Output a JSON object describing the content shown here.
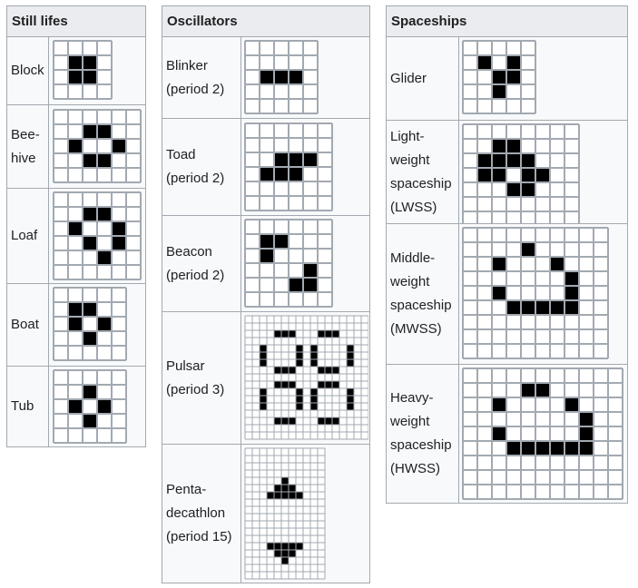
{
  "colors": {
    "cell_alive": "#000000",
    "cell_dead": "#ffffff",
    "grid_line": "#a2a9b1",
    "header_bg": "#eaecf0",
    "row_bg": "#f8f9fa"
  },
  "tables": [
    {
      "header": "Still lifes",
      "rows": [
        {
          "name": [
            "Block"
          ],
          "grid": {
            "rows": 4,
            "cols": 4,
            "alive": [
              [
                1,
                1
              ],
              [
                1,
                2
              ],
              [
                2,
                1
              ],
              [
                2,
                2
              ]
            ]
          }
        },
        {
          "name": [
            "Bee-",
            "hive"
          ],
          "grid": {
            "rows": 5,
            "cols": 6,
            "alive": [
              [
                1,
                2
              ],
              [
                1,
                3
              ],
              [
                2,
                1
              ],
              [
                2,
                4
              ],
              [
                3,
                2
              ],
              [
                3,
                3
              ]
            ]
          }
        },
        {
          "name": [
            "Loaf"
          ],
          "grid": {
            "rows": 6,
            "cols": 6,
            "alive": [
              [
                1,
                2
              ],
              [
                1,
                3
              ],
              [
                2,
                1
              ],
              [
                2,
                4
              ],
              [
                3,
                2
              ],
              [
                3,
                4
              ],
              [
                4,
                3
              ]
            ]
          }
        },
        {
          "name": [
            "Boat"
          ],
          "grid": {
            "rows": 5,
            "cols": 5,
            "alive": [
              [
                1,
                1
              ],
              [
                1,
                2
              ],
              [
                2,
                1
              ],
              [
                2,
                3
              ],
              [
                3,
                2
              ]
            ]
          }
        },
        {
          "name": [
            "Tub"
          ],
          "grid": {
            "rows": 5,
            "cols": 5,
            "alive": [
              [
                1,
                2
              ],
              [
                2,
                1
              ],
              [
                2,
                3
              ],
              [
                3,
                2
              ]
            ]
          }
        }
      ]
    },
    {
      "header": "Oscillators",
      "rows": [
        {
          "name": [
            "Blinker",
            "(period 2)"
          ],
          "grid": {
            "rows": 5,
            "cols": 5,
            "alive": [
              [
                2,
                1
              ],
              [
                2,
                2
              ],
              [
                2,
                3
              ]
            ]
          }
        },
        {
          "name": [
            "Toad",
            "(period 2)"
          ],
          "grid": {
            "rows": 6,
            "cols": 6,
            "alive": [
              [
                2,
                2
              ],
              [
                2,
                3
              ],
              [
                2,
                4
              ],
              [
                3,
                1
              ],
              [
                3,
                2
              ],
              [
                3,
                3
              ]
            ]
          }
        },
        {
          "name": [
            "Beacon",
            "(period 2)"
          ],
          "grid": {
            "rows": 6,
            "cols": 6,
            "alive": [
              [
                1,
                1
              ],
              [
                1,
                2
              ],
              [
                2,
                1
              ],
              [
                3,
                4
              ],
              [
                4,
                3
              ],
              [
                4,
                4
              ]
            ]
          }
        },
        {
          "name": [
            "Pulsar",
            "(period 3)"
          ],
          "grid": {
            "rows": 17,
            "cols": 17,
            "alive": [
              [
                2,
                4
              ],
              [
                2,
                5
              ],
              [
                2,
                6
              ],
              [
                2,
                10
              ],
              [
                2,
                11
              ],
              [
                2,
                12
              ],
              [
                4,
                2
              ],
              [
                4,
                7
              ],
              [
                4,
                9
              ],
              [
                4,
                14
              ],
              [
                5,
                2
              ],
              [
                5,
                7
              ],
              [
                5,
                9
              ],
              [
                5,
                14
              ],
              [
                6,
                2
              ],
              [
                6,
                7
              ],
              [
                6,
                9
              ],
              [
                6,
                14
              ],
              [
                7,
                4
              ],
              [
                7,
                5
              ],
              [
                7,
                6
              ],
              [
                7,
                10
              ],
              [
                7,
                11
              ],
              [
                7,
                12
              ],
              [
                9,
                4
              ],
              [
                9,
                5
              ],
              [
                9,
                6
              ],
              [
                9,
                10
              ],
              [
                9,
                11
              ],
              [
                9,
                12
              ],
              [
                10,
                2
              ],
              [
                10,
                7
              ],
              [
                10,
                9
              ],
              [
                10,
                14
              ],
              [
                11,
                2
              ],
              [
                11,
                7
              ],
              [
                11,
                9
              ],
              [
                11,
                14
              ],
              [
                12,
                2
              ],
              [
                12,
                7
              ],
              [
                12,
                9
              ],
              [
                12,
                14
              ],
              [
                14,
                4
              ],
              [
                14,
                5
              ],
              [
                14,
                6
              ],
              [
                14,
                10
              ],
              [
                14,
                11
              ],
              [
                14,
                12
              ]
            ]
          }
        },
        {
          "name": [
            "Penta-",
            "decathlon",
            "(period 15)"
          ],
          "grid": {
            "rows": 18,
            "cols": 11,
            "alive": [
              [
                4,
                5
              ],
              [
                5,
                4
              ],
              [
                5,
                5
              ],
              [
                5,
                6
              ],
              [
                6,
                3
              ],
              [
                6,
                4
              ],
              [
                6,
                5
              ],
              [
                6,
                6
              ],
              [
                6,
                7
              ],
              [
                13,
                3
              ],
              [
                13,
                4
              ],
              [
                13,
                5
              ],
              [
                13,
                6
              ],
              [
                13,
                7
              ],
              [
                14,
                4
              ],
              [
                14,
                5
              ],
              [
                14,
                6
              ],
              [
                15,
                5
              ]
            ]
          }
        }
      ]
    },
    {
      "header": "Spaceships",
      "rows": [
        {
          "name": [
            "Glider"
          ],
          "grid": {
            "rows": 5,
            "cols": 5,
            "alive": [
              [
                1,
                1
              ],
              [
                1,
                3
              ],
              [
                2,
                2
              ],
              [
                2,
                3
              ],
              [
                3,
                2
              ]
            ]
          }
        },
        {
          "name": [
            "Light-",
            "weight",
            "spaceship",
            "(LWSS)"
          ],
          "grid": {
            "rows": 7,
            "cols": 8,
            "alive": [
              [
                1,
                2
              ],
              [
                1,
                3
              ],
              [
                2,
                1
              ],
              [
                2,
                2
              ],
              [
                2,
                3
              ],
              [
                2,
                4
              ],
              [
                3,
                1
              ],
              [
                3,
                2
              ],
              [
                3,
                4
              ],
              [
                3,
                5
              ],
              [
                4,
                3
              ],
              [
                4,
                4
              ]
            ]
          }
        },
        {
          "name": [
            "Middle-",
            "weight",
            "spaceship",
            "(MWSS)"
          ],
          "grid": {
            "rows": 9,
            "cols": 10,
            "alive": [
              [
                1,
                4
              ],
              [
                2,
                2
              ],
              [
                2,
                6
              ],
              [
                3,
                7
              ],
              [
                4,
                2
              ],
              [
                4,
                7
              ],
              [
                5,
                3
              ],
              [
                5,
                4
              ],
              [
                5,
                5
              ],
              [
                5,
                6
              ],
              [
                5,
                7
              ]
            ]
          }
        },
        {
          "name": [
            "Heavy-",
            "weight",
            "spaceship",
            "(HWSS)"
          ],
          "grid": {
            "rows": 9,
            "cols": 11,
            "alive": [
              [
                1,
                4
              ],
              [
                1,
                5
              ],
              [
                2,
                2
              ],
              [
                2,
                7
              ],
              [
                3,
                8
              ],
              [
                4,
                2
              ],
              [
                4,
                8
              ],
              [
                5,
                3
              ],
              [
                5,
                4
              ],
              [
                5,
                5
              ],
              [
                5,
                6
              ],
              [
                5,
                7
              ],
              [
                5,
                8
              ]
            ]
          }
        }
      ]
    }
  ]
}
